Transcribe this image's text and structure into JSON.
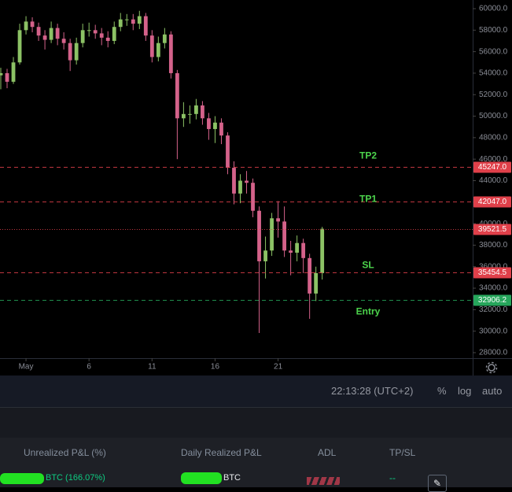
{
  "chart_data": {
    "type": "candlestick",
    "x": [
      -48,
      -36,
      -24,
      -12,
      0,
      12,
      24,
      36,
      48,
      60,
      72,
      84,
      96,
      108,
      120,
      132,
      144,
      156,
      168,
      180,
      192,
      204,
      216,
      228,
      240,
      252,
      264,
      276,
      288,
      300,
      312,
      324,
      336,
      348,
      360,
      372,
      384,
      396,
      408,
      420,
      432,
      444,
      456,
      468,
      480,
      492,
      504,
      516,
      528,
      540,
      552,
      564
    ],
    "open": [
      53800,
      54000,
      53200,
      55000,
      58000,
      58800,
      58300,
      57500,
      57100,
      58200,
      57200,
      56800,
      55200,
      56800,
      58000,
      58000,
      57700,
      57300,
      57000,
      58300,
      59000,
      59000,
      58600,
      59300,
      57500,
      55500,
      56800,
      57600,
      54000,
      49800,
      50200,
      50200,
      51000,
      49800,
      48800,
      49400,
      48200,
      45200,
      42800,
      44000,
      43800,
      41200,
      36500,
      37500,
      40500,
      40200,
      37500,
      37300,
      38200,
      36800,
      33500,
      35400
    ],
    "high": [
      54500,
      54400,
      55500,
      58600,
      59300,
      59200,
      58700,
      58000,
      58800,
      58600,
      57800,
      57200,
      57300,
      58600,
      58700,
      58500,
      58200,
      57900,
      58800,
      59600,
      59500,
      59500,
      59800,
      59600,
      58000,
      57400,
      58200,
      57900,
      54300,
      51300,
      51000,
      51600,
      51400,
      50300,
      50000,
      49800,
      48500,
      45800,
      44600,
      44900,
      44200,
      41600,
      38800,
      41000,
      42100,
      41600,
      38400,
      38900,
      38600,
      37200,
      36000,
      39700
    ],
    "low": [
      52500,
      52600,
      53000,
      54800,
      57600,
      57800,
      57000,
      56200,
      56800,
      56600,
      56200,
      54200,
      54800,
      56400,
      57400,
      57200,
      56600,
      56400,
      56700,
      57900,
      58400,
      58000,
      58100,
      57000,
      55000,
      55100,
      56300,
      53500,
      46000,
      49000,
      49300,
      49700,
      49200,
      47800,
      47500,
      47400,
      44600,
      41800,
      41900,
      42800,
      40600,
      29830,
      34900,
      37000,
      38700,
      36900,
      35200,
      36500,
      35400,
      31150,
      32800,
      34800
    ],
    "close": [
      54000,
      53200,
      55000,
      58000,
      58800,
      58300,
      57500,
      57100,
      58200,
      57200,
      56800,
      55200,
      56800,
      58000,
      58000,
      57700,
      57300,
      57000,
      58300,
      59000,
      59000,
      58600,
      59300,
      57500,
      55500,
      56800,
      57600,
      54000,
      49800,
      50200,
      50200,
      51000,
      49800,
      48800,
      49400,
      48200,
      45200,
      42800,
      44000,
      43800,
      41200,
      36500,
      37500,
      40500,
      40200,
      37500,
      37300,
      38200,
      36800,
      33500,
      35400,
      39521.5
    ],
    "up_color": "#8cc265",
    "down_color": "#d4628a",
    "xlim": [
      -49.5,
      850.5
    ],
    "xticks": [
      {
        "value": 0,
        "label": "May"
      },
      {
        "value": 120,
        "label": "6"
      },
      {
        "value": 240,
        "label": "11"
      },
      {
        "value": 360,
        "label": "16"
      },
      {
        "value": 480,
        "label": "21"
      }
    ],
    "ylim": [
      27487,
      60805
    ],
    "yticks": [
      {
        "value": 28000,
        "label": "28000.0"
      },
      {
        "value": 30000,
        "label": "30000.0"
      },
      {
        "value": 32000,
        "label": "32000.0"
      },
      {
        "value": 34000,
        "label": "34000.0"
      },
      {
        "value": 36000,
        "label": "36000.0"
      },
      {
        "value": 38000,
        "label": "38000.0"
      },
      {
        "value": 40000,
        "label": "40000.0"
      },
      {
        "value": 42000,
        "label": "42000.0"
      },
      {
        "value": 44000,
        "label": "44000.0"
      },
      {
        "value": 46000,
        "label": "46000.0"
      },
      {
        "value": 48000,
        "label": "48000.0"
      },
      {
        "value": 50000,
        "label": "50000.0"
      },
      {
        "value": 52000,
        "label": "52000.0"
      },
      {
        "value": 54000,
        "label": "54000.0"
      },
      {
        "value": 56000,
        "label": "56000.0"
      },
      {
        "value": 58000,
        "label": "58000.0"
      },
      {
        "value": 60000,
        "label": "60000.0"
      }
    ],
    "price_lines": [
      {
        "label": "TP2",
        "value": 45247,
        "value_label": "45247.0",
        "color": "#e0404a",
        "style": "dashed"
      },
      {
        "label": "TP1",
        "value": 42047,
        "value_label": "42047.0",
        "color": "#e0404a",
        "style": "dashed"
      },
      {
        "value": 39521.5,
        "color": "#e0404a",
        "style": "dotted"
      },
      {
        "label": "SL",
        "value": 35454.5,
        "value_label": "35454.5",
        "color": "#e0404a",
        "style": "dashed"
      },
      {
        "label": "Entry",
        "value": 32906.2,
        "value_label": "32906.2",
        "color": "#26a65b",
        "style": "dashed"
      }
    ]
  },
  "toolbar": {
    "time": "22:13:28 (UTC+2)",
    "buttons": [
      "%",
      "log",
      "auto"
    ]
  },
  "positions": {
    "columns": [
      "Unrealized P&L (%)",
      "Daily Realized P&L",
      "ADL",
      "TP/SL"
    ],
    "row": [
      "BTC (166.07%)",
      "BTC",
      "--"
    ]
  }
}
